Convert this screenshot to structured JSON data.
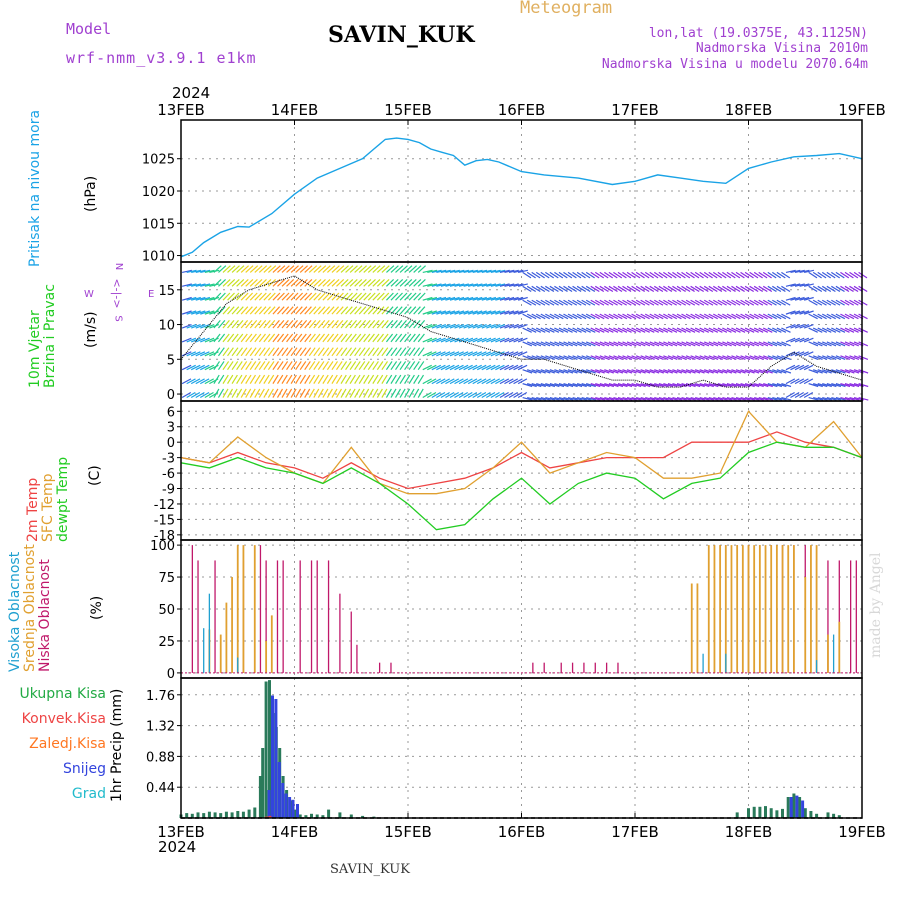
{
  "header": {
    "model_label": "Model",
    "model_name": "wrf-nmm_v3.9.1 e1km",
    "station": "SAVIN_KUK",
    "title": "Meteogram",
    "lonlat": "lon,lat (19.0375E, 43.1125N)",
    "altitude": "Nadmorska Visina 2010m",
    "model_altitude": "Nadmorska Visina u modelu 2070.64m",
    "year_top": "2024",
    "year_bottom": "2024",
    "footer_station": "SAVIN_KUK",
    "credit": "made by Angel"
  },
  "colors": {
    "pressure": "#1aa3e6",
    "temp2m": "#ee4444",
    "sfc": "#e0a030",
    "dewpt": "#22cc22",
    "high_cloud": "#20a0d0",
    "mid_cloud": "#e0a030",
    "low_cloud": "#c0186a",
    "total_rain": "#2a7a5a",
    "conv_rain": "#ee4444",
    "frozen_rain": "#ff7722",
    "snow": "#3344dd",
    "hail": "#22bbcc",
    "accent_purple": "#a040d0",
    "title_gold": "#e0b060"
  },
  "x_axis": {
    "days": [
      "13FEB",
      "14FEB",
      "15FEB",
      "16FEB",
      "17FEB",
      "18FEB",
      "19FEB"
    ]
  },
  "panels": {
    "pressure": {
      "label_lines": [
        "Pritisak na nivou mora"
      ],
      "unit": "(hPa)",
      "yticks": [
        1010,
        1015,
        1020,
        1025
      ],
      "ylim": [
        1009,
        1031
      ]
    },
    "wind": {
      "label_lines": [
        "10m Vjetar",
        "Brzina i Pravac"
      ],
      "unit": "(m/s)",
      "compass": "S",
      "compass_w": "W",
      "compass_e": "E",
      "compass_n": "N",
      "yticks": [
        0,
        5,
        10,
        15
      ],
      "ylim": [
        -1,
        19
      ]
    },
    "temp": {
      "label_lines": [
        "2m Temp",
        "SFC Temp",
        "dewpt Temp"
      ],
      "unit": "(C)",
      "yticks": [
        6,
        3,
        0,
        -3,
        -6,
        -9,
        -12,
        -15,
        -18
      ],
      "ylim": [
        -19,
        8
      ]
    },
    "cloud": {
      "label_lines": [
        "Visoka Oblacnost",
        "Srednja Oblacnost",
        "Niska Oblacnost"
      ],
      "unit": "(%)",
      "yticks": [
        0,
        25,
        50,
        75,
        100
      ],
      "ylim": [
        -4,
        104
      ]
    },
    "precip": {
      "legend": [
        "Ukupna Kisa",
        "Konvek.Kisa",
        "Zaledj.Kisa",
        "Snijeg",
        "Grad"
      ],
      "unit": "1hr Precip (mm)",
      "yticks": [
        "0.44",
        "0.88",
        "1.32",
        "1.76"
      ],
      "ylim": [
        0,
        2.0
      ]
    }
  },
  "chart_data": [
    {
      "type": "line",
      "title": "Pritisak na nivou mora",
      "ylabel": "(hPa)",
      "x_unit": "days since 13FEB 00",
      "series": [
        {
          "name": "Pritisak na nivou mora",
          "x": [
            0,
            0.1,
            0.2,
            0.35,
            0.5,
            0.6,
            0.8,
            1.0,
            1.2,
            1.4,
            1.6,
            1.7,
            1.8,
            1.9,
            2.0,
            2.1,
            2.2,
            2.3,
            2.4,
            2.5,
            2.6,
            2.7,
            2.8,
            3.0,
            3.2,
            3.5,
            3.8,
            4.0,
            4.2,
            4.4,
            4.6,
            4.8,
            5.0,
            5.2,
            5.4,
            5.6,
            5.8,
            6.0
          ],
          "values": [
            1009.8,
            1010.5,
            1012.0,
            1013.6,
            1014.5,
            1014.4,
            1016.5,
            1019.5,
            1022.0,
            1023.5,
            1025.0,
            1026.5,
            1028.0,
            1028.2,
            1028.0,
            1027.5,
            1026.5,
            1026.0,
            1025.5,
            1024.0,
            1024.7,
            1024.9,
            1024.5,
            1023.0,
            1022.5,
            1022.0,
            1021.0,
            1021.5,
            1022.5,
            1022.0,
            1021.5,
            1021.2,
            1023.5,
            1024.5,
            1025.3,
            1025.5,
            1025.8,
            1025.0
          ]
        }
      ]
    },
    {
      "type": "line",
      "title": "10m Vjetar Brzina i Pravac",
      "ylabel": "(m/s)",
      "x_unit": "days since 13FEB 00",
      "series": [
        {
          "name": "Brzina",
          "x": [
            0,
            0.2,
            0.4,
            0.6,
            0.8,
            1.0,
            1.2,
            1.4,
            1.6,
            1.8,
            2.0,
            2.2,
            2.4,
            2.6,
            2.8,
            3.0,
            3.2,
            3.4,
            3.6,
            3.8,
            4.0,
            4.2,
            4.4,
            4.6,
            4.8,
            5.0,
            5.2,
            5.4,
            5.6,
            5.8,
            6.0
          ],
          "values": [
            5,
            9,
            13,
            15,
            16,
            17,
            15,
            14,
            13,
            12,
            11,
            9,
            8,
            7,
            6,
            5,
            5,
            4,
            3,
            2,
            2,
            1,
            1,
            2,
            1,
            1,
            4,
            6,
            4,
            3,
            2
          ]
        }
      ]
    },
    {
      "type": "line",
      "title": "2m / SFC / dewpt Temp",
      "ylabel": "(C)",
      "x_unit": "days since 13FEB 00",
      "series": [
        {
          "name": "2m Temp",
          "x": [
            0,
            0.25,
            0.5,
            0.75,
            1.0,
            1.25,
            1.5,
            1.75,
            2.0,
            2.25,
            2.5,
            2.75,
            3.0,
            3.25,
            3.5,
            3.75,
            4.0,
            4.25,
            4.5,
            4.75,
            5.0,
            5.25,
            5.5,
            5.75,
            6.0
          ],
          "values": [
            -3,
            -4,
            -2,
            -4,
            -5,
            -7,
            -4,
            -7,
            -9,
            -8,
            -7,
            -5,
            -2,
            -5,
            -4,
            -3,
            -3,
            -3,
            0,
            0,
            0,
            2,
            0,
            -1,
            -3
          ]
        },
        {
          "name": "SFC Temp",
          "x": [
            0,
            0.25,
            0.5,
            0.75,
            1.0,
            1.25,
            1.5,
            1.75,
            2.0,
            2.25,
            2.5,
            2.75,
            3.0,
            3.25,
            3.5,
            3.75,
            4.0,
            4.25,
            4.5,
            4.75,
            5.0,
            5.25,
            5.5,
            5.75,
            6.0
          ],
          "values": [
            -3,
            -4,
            1,
            -3,
            -6,
            -8,
            -1,
            -8,
            -10,
            -10,
            -9,
            -5,
            0,
            -6,
            -4,
            -2,
            -3,
            -7,
            -7,
            -6,
            6,
            0,
            -1,
            4,
            -3
          ]
        },
        {
          "name": "dewpt Temp",
          "x": [
            0,
            0.25,
            0.5,
            0.75,
            1.0,
            1.25,
            1.5,
            1.75,
            2.0,
            2.25,
            2.5,
            2.75,
            3.0,
            3.25,
            3.5,
            3.75,
            4.0,
            4.25,
            4.5,
            4.75,
            5.0,
            5.25,
            5.5,
            5.75,
            6.0
          ],
          "values": [
            -4,
            -5,
            -3,
            -5,
            -6,
            -8,
            -5,
            -8,
            -12,
            -17,
            -16,
            -11,
            -7,
            -12,
            -8,
            -6,
            -7,
            -11,
            -8,
            -7,
            -2,
            0,
            -1,
            -1,
            -3
          ]
        }
      ]
    },
    {
      "type": "bar",
      "title": "Oblacnost",
      "ylabel": "(%)",
      "x_unit": "days since 13FEB 00",
      "series": [
        {
          "name": "Niska Oblacnost",
          "x": [
            0.1,
            0.15,
            0.3,
            0.5,
            0.55,
            0.7,
            0.75,
            0.85,
            0.9,
            1.05,
            1.15,
            1.2,
            1.3,
            1.4,
            1.5,
            1.55,
            1.75,
            1.85,
            3.1,
            3.2,
            3.35,
            3.45,
            3.55,
            3.65,
            3.75,
            3.85,
            4.65,
            4.75,
            4.8,
            4.9,
            5.0,
            5.1,
            5.2,
            5.3,
            5.4,
            5.5,
            5.6,
            5.7,
            5.8,
            5.9,
            5.95
          ],
          "values": [
            100,
            88,
            88,
            88,
            88,
            100,
            88,
            88,
            88,
            88,
            88,
            88,
            88,
            62,
            48,
            22,
            8,
            8,
            8,
            8,
            8,
            8,
            8,
            8,
            8,
            8,
            88,
            100,
            100,
            100,
            100,
            100,
            100,
            100,
            100,
            100,
            88,
            88,
            88,
            88,
            88
          ]
        },
        {
          "name": "Srednja Oblacnost",
          "x": [
            0.25,
            0.35,
            0.4,
            0.45,
            0.5,
            0.55,
            0.65,
            0.75,
            0.8,
            4.5,
            4.55,
            4.65,
            4.7,
            4.75,
            4.8,
            4.85,
            4.9,
            4.95,
            5.0,
            5.05,
            5.1,
            5.15,
            5.2,
            5.25,
            5.3,
            5.35,
            5.4,
            5.5,
            5.55,
            5.6,
            5.7,
            5.8
          ],
          "values": [
            34,
            30,
            55,
            75,
            100,
            100,
            100,
            25,
            45,
            70,
            70,
            100,
            100,
            100,
            100,
            100,
            100,
            100,
            100,
            100,
            100,
            100,
            100,
            100,
            100,
            100,
            100,
            75,
            100,
            100,
            30,
            40
          ]
        },
        {
          "name": "Visoka Oblacnost",
          "x": [
            0.2,
            0.25,
            0.5,
            4.6,
            4.8,
            5.6,
            5.75
          ],
          "values": [
            35,
            62,
            12,
            15,
            15,
            10,
            30
          ]
        }
      ]
    },
    {
      "type": "bar",
      "title": "1hr Precip",
      "ylabel": "1hr Precip (mm)",
      "x_unit": "days since 13FEB 00",
      "series": [
        {
          "name": "Ukupna Kisa",
          "x": [
            0,
            0.05,
            0.1,
            0.15,
            0.2,
            0.25,
            0.3,
            0.35,
            0.4,
            0.45,
            0.5,
            0.55,
            0.6,
            0.65,
            0.7,
            0.72,
            0.75,
            0.78,
            0.81,
            0.84,
            0.87,
            0.9,
            0.93,
            0.96,
            1.0,
            1.05,
            1.1,
            1.15,
            1.2,
            1.25,
            1.3,
            1.4,
            1.5,
            1.6,
            1.7,
            4.9,
            5.0,
            5.05,
            5.1,
            5.15,
            5.2,
            5.25,
            5.3,
            5.35,
            5.4,
            5.45,
            5.5,
            5.55,
            5.6,
            5.7,
            5.75,
            5.8
          ],
          "values": [
            0.05,
            0.07,
            0.06,
            0.08,
            0.07,
            0.09,
            0.08,
            0.07,
            0.09,
            0.08,
            0.1,
            0.09,
            0.12,
            0.15,
            0.6,
            1.0,
            1.95,
            1.97,
            1.5,
            1.3,
            1.0,
            0.6,
            0.4,
            0.25,
            0.12,
            0.05,
            0.04,
            0.06,
            0.05,
            0.04,
            0.12,
            0.08,
            0.05,
            0.03,
            0.02,
            0.08,
            0.14,
            0.16,
            0.16,
            0.17,
            0.14,
            0.11,
            0.13,
            0.3,
            0.35,
            0.3,
            0.14,
            0.1,
            0.06,
            0.08,
            0.06,
            0.04
          ]
        },
        {
          "name": "Snijeg",
          "x": [
            0.75,
            0.78,
            0.81,
            0.84,
            0.87,
            0.9,
            0.93,
            0.96,
            1.0,
            5.35,
            5.4,
            5.45
          ],
          "values": [
            0.4,
            1.75,
            1.7,
            0.8,
            0.5,
            0.35,
            0.3,
            0.26,
            0.2,
            0.3,
            0.32,
            0.25
          ]
        },
        {
          "name": "Konvek.Kisa",
          "x": [
            0.78,
            0.81
          ],
          "values": [
            0.02,
            0.03
          ]
        },
        {
          "name": "Zaledj.Kisa",
          "x": [],
          "values": []
        },
        {
          "name": "Grad",
          "x": [],
          "values": []
        }
      ]
    }
  ]
}
